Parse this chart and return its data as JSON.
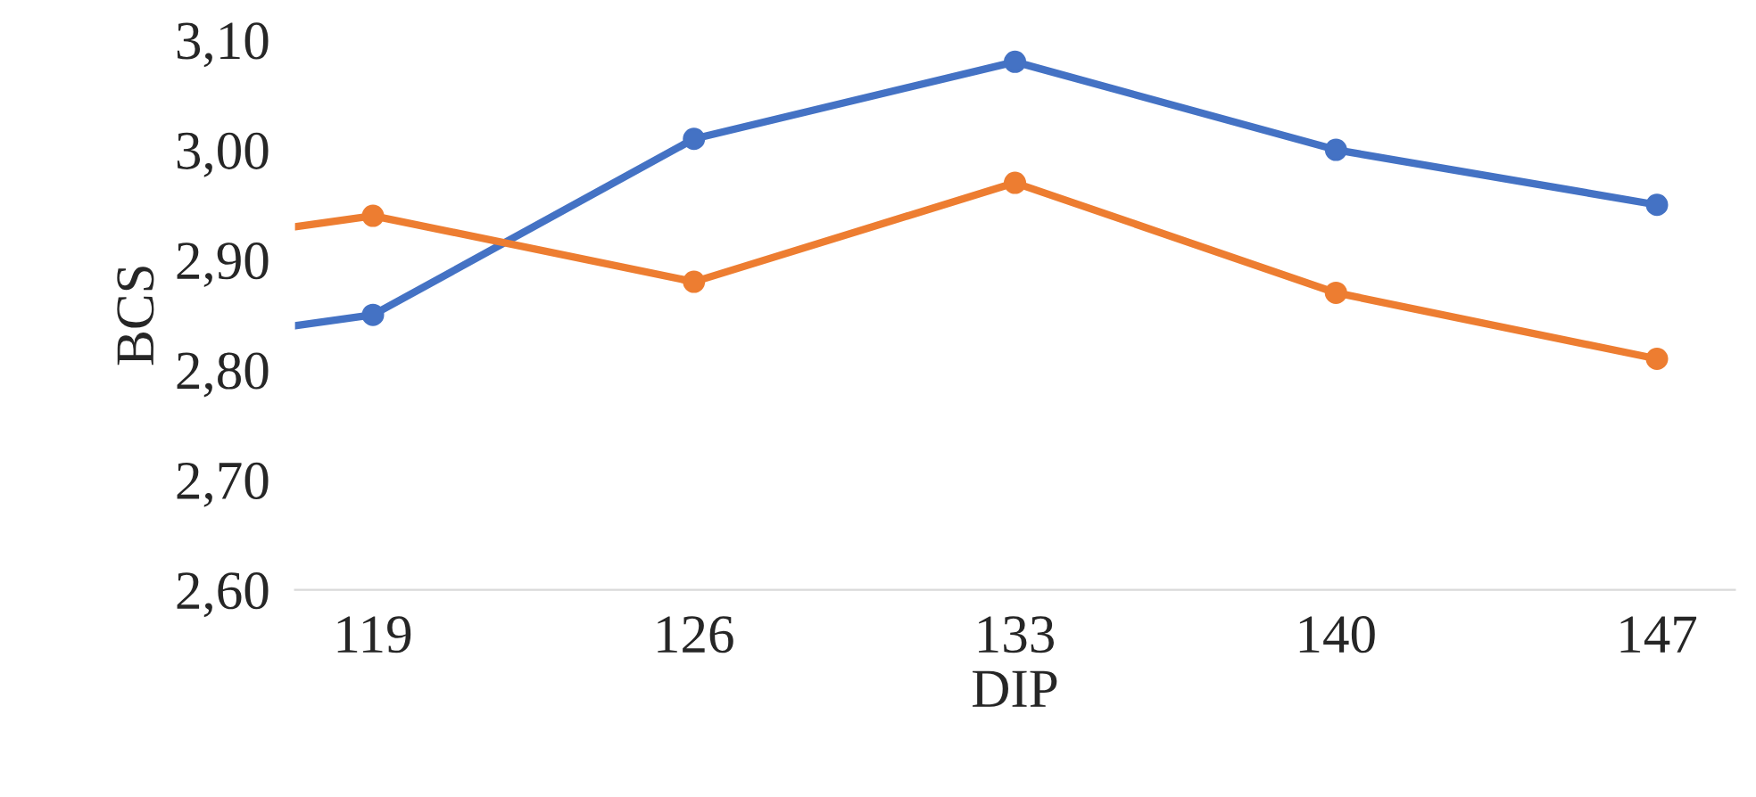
{
  "chart_data": {
    "type": "line",
    "xlabel": "DIP",
    "ylabel": "BCS",
    "x": [
      117.3,
      119,
      126,
      133,
      140,
      147
    ],
    "series": [
      {
        "color": "#4472c4",
        "values": [
          2.84,
          2.85,
          3.01,
          3.08,
          3.0,
          2.95
        ]
      },
      {
        "color": "#ed7d31",
        "values": [
          2.93,
          2.94,
          2.88,
          2.97,
          2.87,
          2.81
        ]
      }
    ],
    "xlim": [
      117.3,
      148.7
    ],
    "xticks": [
      119,
      126,
      133,
      140,
      147
    ],
    "ylim": [
      2.6,
      3.1
    ],
    "yticks": [
      {
        "value": 2.6,
        "label": "2,60"
      },
      {
        "value": 2.7,
        "label": "2,70"
      },
      {
        "value": 2.8,
        "label": "2,80"
      },
      {
        "value": 2.9,
        "label": "2,90"
      },
      {
        "value": 3.0,
        "label": "3,00"
      },
      {
        "value": 3.1,
        "label": "3,10"
      }
    ],
    "marker": "circle",
    "line_style": "solid",
    "grid": false,
    "legend": false
  }
}
